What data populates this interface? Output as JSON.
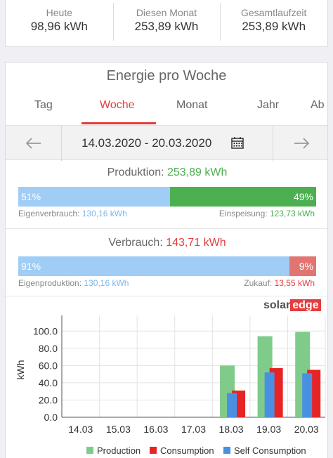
{
  "summary": [
    {
      "label": "Heute",
      "value": "98,96 kWh"
    },
    {
      "label": "Diesen Monat",
      "value": "253,89 kWh"
    },
    {
      "label": "Gesamtlaufzeit",
      "value": "253,89 kWh"
    }
  ],
  "card_title": "Energie pro Woche",
  "tabs": [
    {
      "label": "Tag"
    },
    {
      "label": "Woche"
    },
    {
      "label": "Monat"
    },
    {
      "label": "Jahr"
    },
    {
      "label": "Ab"
    }
  ],
  "date_range": "14.03.2020 - 20.03.2020",
  "production": {
    "title": "Produktion:",
    "value": "253,89 kWh",
    "left_pct": "51%",
    "right_pct": "49%",
    "left_fraction": 0.51,
    "left_label": "Eigenverbrauch:",
    "left_value": "130,16 kWh",
    "right_label": "Einspeisung:",
    "right_value": "123,73 kWh"
  },
  "consumption": {
    "title": "Verbrauch:",
    "value": "143,71 kWh",
    "left_pct": "91%",
    "right_pct": "9%",
    "left_fraction": 0.91,
    "left_label": "Eigenproduktion:",
    "left_value": "130,16 kWh",
    "right_label": "Zukauf:",
    "right_value": "13,55 kWh"
  },
  "logo": {
    "solar": "solar",
    "edge": "edge"
  },
  "colors": {
    "accent": "#e33d3d",
    "production": "#7fcb8a",
    "consumption": "#e82323",
    "self": "#4a90e2"
  },
  "chart_data": {
    "type": "bar",
    "categories": [
      "14.03",
      "15.03",
      "16.03",
      "17.03",
      "18.03",
      "19.03",
      "20.03"
    ],
    "series": [
      {
        "name": "Production",
        "values": [
          0,
          0,
          0,
          0,
          60,
          94,
          99
        ]
      },
      {
        "name": "Consumption",
        "values": [
          0,
          0,
          0,
          0,
          31,
          57,
          55
        ]
      },
      {
        "name": "Self Consumption",
        "values": [
          0,
          0,
          0,
          0,
          28,
          52,
          51
        ]
      }
    ],
    "ylabel": "kWh",
    "yticks": [
      "0.0",
      "20.0",
      "40.0",
      "60.0",
      "80.0",
      "100.0"
    ],
    "ylim": [
      0,
      110
    ],
    "grid": true,
    "legend": "bottom"
  }
}
